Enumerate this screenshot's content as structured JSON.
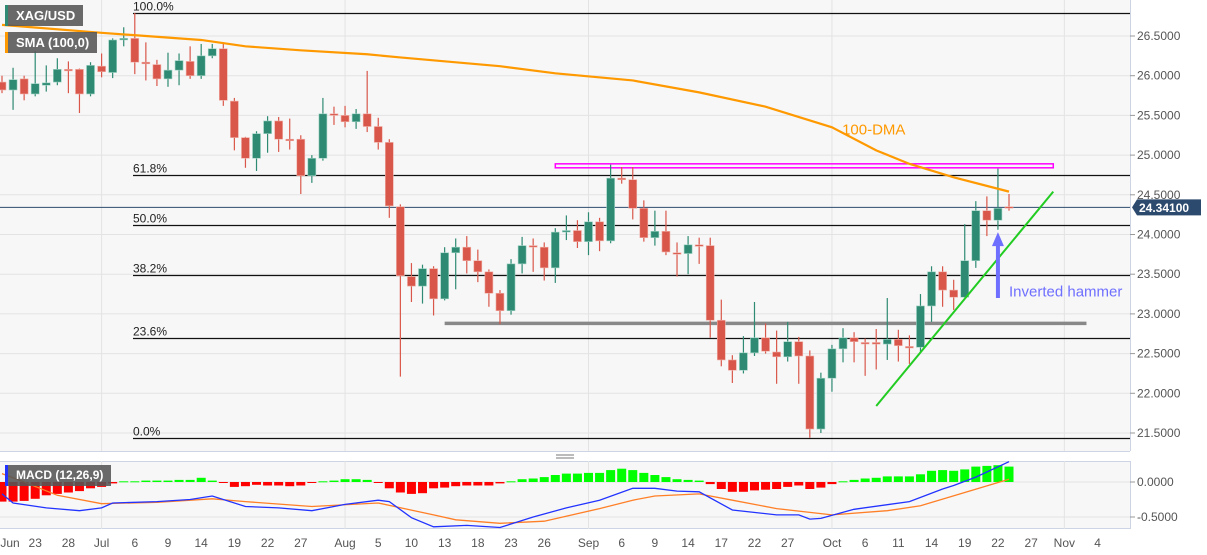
{
  "symbol": "XAG/USD",
  "legend": {
    "price": {
      "label": "XAG/USD",
      "color": "#2e8a72"
    },
    "sma": {
      "label": "SMA (100,0)",
      "color": "#ff9900"
    },
    "macd": {
      "label": "MACD (12,26,9)",
      "color": "#2233ff"
    }
  },
  "colors": {
    "up": "#2e8a72",
    "down": "#d9574a",
    "sma": "#ff9900",
    "macd": "#2233ff",
    "signal": "#ff7f27",
    "hist_up": "#00ff00",
    "hist_down": "#ff0000",
    "last_price": "#2c4a6e"
  },
  "last_price": "24.34100",
  "price_axis": {
    "ticks": [
      "26.5000",
      "26.0000",
      "25.5000",
      "25.0000",
      "24.5000",
      "24.0000",
      "23.5000",
      "23.0000",
      "22.5000",
      "22.0000",
      "21.5000"
    ]
  },
  "macd_axis": {
    "ticks": [
      "0.0000",
      "-0.5000"
    ]
  },
  "x_axis": {
    "ticks": [
      {
        "label": "Jun",
        "date": "Jun 18"
      },
      {
        "label": "23",
        "date": "Jun 23"
      },
      {
        "label": "28",
        "date": "Jun 28"
      },
      {
        "label": "Jul",
        "date": "Jul 1"
      },
      {
        "label": "6",
        "date": "Jul 6"
      },
      {
        "label": "9",
        "date": "Jul 9"
      },
      {
        "label": "14",
        "date": "Jul 14"
      },
      {
        "label": "19",
        "date": "Jul 19"
      },
      {
        "label": "22",
        "date": "Jul 22"
      },
      {
        "label": "27",
        "date": "Jul 27"
      },
      {
        "label": "Aug",
        "date": "Aug 2"
      },
      {
        "label": "5",
        "date": "Aug 5"
      },
      {
        "label": "10",
        "date": "Aug 10"
      },
      {
        "label": "13",
        "date": "Aug 13"
      },
      {
        "label": "18",
        "date": "Aug 18"
      },
      {
        "label": "23",
        "date": "Aug 23"
      },
      {
        "label": "26",
        "date": "Aug 26"
      },
      {
        "label": "Sep",
        "date": "Sep 1"
      },
      {
        "label": "6",
        "date": "Sep 6"
      },
      {
        "label": "9",
        "date": "Sep 9"
      },
      {
        "label": "14",
        "date": "Sep 14"
      },
      {
        "label": "17",
        "date": "Sep 17"
      },
      {
        "label": "22",
        "date": "Sep 22"
      },
      {
        "label": "27",
        "date": "Sep 27"
      },
      {
        "label": "Oct",
        "date": "Oct 1"
      },
      {
        "label": "6",
        "date": "Oct 6"
      },
      {
        "label": "11",
        "date": "Oct 11"
      },
      {
        "label": "14",
        "date": "Oct 14"
      },
      {
        "label": "19",
        "date": "Oct 19"
      },
      {
        "label": "22",
        "date": "Oct 22"
      },
      {
        "label": "27",
        "date": "Oct 27"
      },
      {
        "label": "Nov",
        "date": "Nov 1"
      },
      {
        "label": "4",
        "date": "Nov 4"
      }
    ]
  },
  "fibonacci": {
    "high": 26.79,
    "low": 21.44,
    "levels": [
      {
        "label": "100.0%",
        "ratio": 1.0
      },
      {
        "label": "61.8%",
        "ratio": 0.618
      },
      {
        "label": "50.0%",
        "ratio": 0.5
      },
      {
        "label": "38.2%",
        "ratio": 0.382
      },
      {
        "label": "23.6%",
        "ratio": 0.236
      },
      {
        "label": "0.0%",
        "ratio": 0.0
      }
    ]
  },
  "annotations": {
    "sma_label": {
      "text": "100-DMA",
      "date": "Oct 5",
      "price": 25.32
    },
    "resistance_zone": {
      "from": "Aug 27",
      "to": "Oct 29",
      "top": 24.89,
      "bottom": 24.84,
      "color": "#ff00ff"
    },
    "support_line": {
      "from": "Aug 13",
      "to": "Nov 3",
      "price": 22.88,
      "color": "#888888"
    },
    "trendline": {
      "from": {
        "date": "Oct 7",
        "price": 21.84
      },
      "to": {
        "date": "Oct 29",
        "price": 24.54
      },
      "color": "#22cc22"
    },
    "arrow": {
      "date": "Oct 22",
      "from": 23.2,
      "to": 24.03,
      "color": "#6f6fff"
    },
    "arrow_label": {
      "text": "Inverted hammer",
      "price": 23.28,
      "color": "#6f6fff"
    }
  },
  "chart_data": {
    "type": "candlestick",
    "title": "XAG/USD",
    "columns": [
      "date",
      "open",
      "high",
      "low",
      "close"
    ],
    "candles": [
      [
        "Jun 18",
        25.92,
        26.0,
        25.78,
        25.82
      ],
      [
        "Jun 21",
        25.82,
        26.1,
        25.57,
        25.95
      ],
      [
        "Jun 22",
        25.96,
        26.0,
        25.69,
        25.77
      ],
      [
        "Jun 23",
        25.77,
        26.31,
        25.74,
        25.9
      ],
      [
        "Jun 24",
        25.88,
        26.13,
        25.8,
        25.91
      ],
      [
        "Jun 25",
        25.92,
        26.22,
        25.88,
        26.08
      ],
      [
        "Jun 28",
        26.08,
        26.18,
        25.78,
        26.07
      ],
      [
        "Jun 29",
        26.08,
        26.09,
        25.53,
        25.77
      ],
      [
        "Jun 30",
        25.77,
        26.17,
        25.74,
        26.13
      ],
      [
        "Jul 1",
        26.12,
        26.28,
        25.98,
        26.05
      ],
      [
        "Jul 2",
        26.04,
        26.47,
        25.97,
        26.45
      ],
      [
        "Jul 5",
        26.46,
        26.61,
        26.37,
        26.47
      ],
      [
        "Jul 6",
        26.47,
        26.79,
        26.02,
        26.17
      ],
      [
        "Jul 7",
        26.17,
        26.42,
        25.94,
        26.15
      ],
      [
        "Jul 8",
        26.14,
        26.2,
        25.87,
        25.96
      ],
      [
        "Jul 9",
        25.96,
        26.29,
        25.86,
        26.07
      ],
      [
        "Jul 12",
        26.07,
        26.28,
        25.88,
        26.19
      ],
      [
        "Jul 13",
        26.18,
        26.37,
        25.96,
        26.0
      ],
      [
        "Jul 14",
        26.0,
        26.4,
        25.96,
        26.25
      ],
      [
        "Jul 15",
        26.25,
        26.4,
        26.22,
        26.34
      ],
      [
        "Jul 16",
        26.34,
        26.42,
        25.62,
        25.69
      ],
      [
        "Jul 19",
        25.68,
        25.72,
        25.06,
        25.22
      ],
      [
        "Jul 20",
        25.22,
        25.23,
        24.84,
        24.96
      ],
      [
        "Jul 21",
        24.96,
        25.3,
        24.8,
        25.27
      ],
      [
        "Jul 22",
        25.27,
        25.49,
        25.03,
        25.43
      ],
      [
        "Jul 23",
        25.43,
        25.48,
        25.04,
        25.2
      ],
      [
        "Jul 26",
        25.2,
        25.46,
        25.07,
        25.19
      ],
      [
        "Jul 27",
        25.2,
        25.25,
        24.51,
        24.74
      ],
      [
        "Jul 28",
        24.74,
        25.0,
        24.65,
        24.96
      ],
      [
        "Jul 29",
        24.96,
        25.72,
        24.93,
        25.52
      ],
      [
        "Jul 30",
        25.52,
        25.61,
        25.38,
        25.5
      ],
      [
        "Aug 2",
        25.5,
        25.62,
        25.35,
        25.42
      ],
      [
        "Aug 3",
        25.42,
        25.58,
        25.33,
        25.52
      ],
      [
        "Aug 4",
        25.52,
        26.06,
        25.29,
        25.36
      ],
      [
        "Aug 5",
        25.36,
        25.47,
        25.07,
        25.16
      ],
      [
        "Aug 6",
        25.16,
        25.2,
        24.21,
        24.36
      ],
      [
        "Aug 9",
        24.35,
        24.38,
        22.21,
        23.48
      ],
      [
        "Aug 10",
        23.47,
        23.64,
        23.15,
        23.35
      ],
      [
        "Aug 11",
        23.35,
        23.62,
        23.13,
        23.57
      ],
      [
        "Aug 12",
        23.57,
        23.6,
        22.98,
        23.19
      ],
      [
        "Aug 13",
        23.19,
        23.84,
        23.17,
        23.77
      ],
      [
        "Aug 16",
        23.77,
        23.95,
        23.31,
        23.84
      ],
      [
        "Aug 17",
        23.84,
        23.98,
        23.51,
        23.67
      ],
      [
        "Aug 18",
        23.67,
        23.81,
        23.4,
        23.53
      ],
      [
        "Aug 19",
        23.53,
        23.56,
        23.09,
        23.26
      ],
      [
        "Aug 20",
        23.26,
        23.3,
        22.87,
        23.04
      ],
      [
        "Aug 23",
        23.04,
        23.69,
        22.99,
        23.63
      ],
      [
        "Aug 24",
        23.63,
        23.97,
        23.51,
        23.86
      ],
      [
        "Aug 25",
        23.86,
        23.95,
        23.53,
        23.85
      ],
      [
        "Aug 26",
        23.84,
        23.9,
        23.42,
        23.58
      ],
      [
        "Aug 27",
        23.58,
        24.08,
        23.39,
        24.03
      ],
      [
        "Aug 30",
        24.04,
        24.24,
        23.93,
        24.05
      ],
      [
        "Aug 31",
        24.05,
        24.18,
        23.83,
        23.91
      ],
      [
        "Sep 1",
        23.91,
        24.28,
        23.74,
        24.16
      ],
      [
        "Sep 2",
        24.16,
        24.21,
        23.79,
        23.92
      ],
      [
        "Sep 3",
        23.92,
        24.88,
        23.89,
        24.71
      ],
      [
        "Sep 6",
        24.71,
        24.85,
        24.64,
        24.69
      ],
      [
        "Sep 7",
        24.69,
        24.85,
        24.19,
        24.33
      ],
      [
        "Sep 8",
        24.33,
        24.43,
        23.91,
        23.96
      ],
      [
        "Sep 9",
        23.96,
        24.3,
        23.86,
        24.04
      ],
      [
        "Sep 10",
        24.04,
        24.3,
        23.74,
        23.78
      ],
      [
        "Sep 13",
        23.77,
        23.9,
        23.47,
        23.76
      ],
      [
        "Sep 14",
        23.76,
        23.98,
        23.5,
        23.87
      ],
      [
        "Sep 15",
        23.87,
        23.96,
        23.63,
        23.86
      ],
      [
        "Sep 16",
        23.86,
        23.96,
        22.7,
        22.92
      ],
      [
        "Sep 17",
        22.92,
        23.18,
        22.34,
        22.42
      ],
      [
        "Sep 20",
        22.42,
        22.48,
        22.13,
        22.29
      ],
      [
        "Sep 21",
        22.29,
        22.72,
        22.25,
        22.51
      ],
      [
        "Sep 22",
        22.51,
        23.15,
        22.47,
        22.7
      ],
      [
        "Sep 23",
        22.7,
        22.88,
        22.5,
        22.53
      ],
      [
        "Sep 24",
        22.52,
        22.79,
        22.12,
        22.46
      ],
      [
        "Sep 27",
        22.46,
        22.9,
        22.4,
        22.65
      ],
      [
        "Sep 28",
        22.65,
        22.71,
        22.12,
        22.47
      ],
      [
        "Sep 29",
        22.47,
        22.54,
        21.44,
        21.55
      ],
      [
        "Sep 30",
        21.55,
        22.26,
        21.5,
        22.19
      ],
      [
        "Oct 1",
        22.19,
        22.61,
        22.02,
        22.56
      ],
      [
        "Oct 4",
        22.56,
        22.82,
        22.39,
        22.7
      ],
      [
        "Oct 5",
        22.7,
        22.77,
        22.39,
        22.65
      ],
      [
        "Oct 6",
        22.64,
        22.69,
        22.22,
        22.63
      ],
      [
        "Oct 7",
        22.64,
        22.81,
        22.3,
        22.62
      ],
      [
        "Oct 8",
        22.62,
        23.2,
        22.42,
        22.68
      ],
      [
        "Oct 11",
        22.68,
        22.8,
        22.4,
        22.6
      ],
      [
        "Oct 12",
        22.59,
        22.73,
        22.37,
        22.58
      ],
      [
        "Oct 13",
        22.58,
        23.25,
        22.51,
        23.1
      ],
      [
        "Oct 14",
        23.1,
        23.6,
        22.9,
        23.53
      ],
      [
        "Oct 15",
        23.53,
        23.6,
        23.09,
        23.3
      ],
      [
        "Oct 18",
        23.3,
        23.43,
        23.05,
        23.21
      ],
      [
        "Oct 19",
        23.21,
        24.13,
        23.2,
        23.67
      ],
      [
        "Oct 20",
        23.67,
        24.42,
        23.58,
        24.3
      ],
      [
        "Oct 21",
        24.3,
        24.48,
        23.98,
        24.18
      ],
      [
        "Oct 22",
        24.18,
        24.83,
        24.06,
        24.33
      ],
      [
        "Oct 25",
        24.35,
        24.51,
        24.3,
        24.341
      ]
    ],
    "future_dates": [
      "Oct 26",
      "Oct 27",
      "Oct 28",
      "Oct 29",
      "Nov 1",
      "Nov 2",
      "Nov 3",
      "Nov 4"
    ],
    "sma_100": [
      [
        "Jun 18",
        26.64
      ],
      [
        "Jul 1",
        26.54
      ],
      [
        "Jul 14",
        26.45
      ],
      [
        "Jul 20",
        26.37
      ],
      [
        "Jul 27",
        26.32
      ],
      [
        "Aug 4",
        26.27
      ],
      [
        "Aug 9",
        26.23
      ],
      [
        "Aug 20",
        26.12
      ],
      [
        "Aug 27",
        26.03
      ],
      [
        "Sep 7",
        25.94
      ],
      [
        "Sep 15",
        25.79
      ],
      [
        "Sep 23",
        25.61
      ],
      [
        "Oct 1",
        25.35
      ],
      [
        "Oct 7",
        25.06
      ],
      [
        "Oct 12",
        24.89
      ],
      [
        "Oct 18",
        24.72
      ],
      [
        "Oct 25",
        24.54
      ]
    ],
    "ylim": [
      21.2,
      26.8
    ],
    "macd": {
      "ylim": [
        -0.66,
        0.29
      ],
      "histogram": [
        -0.28,
        -0.28,
        -0.27,
        -0.24,
        -0.19,
        -0.17,
        -0.15,
        -0.13,
        -0.09,
        -0.07,
        -0.02,
        0.01,
        0.01,
        0.02,
        0.02,
        0.02,
        0.03,
        0.03,
        0.06,
        0.02,
        -0.01,
        -0.07,
        -0.06,
        -0.04,
        -0.05,
        -0.05,
        -0.06,
        -0.05,
        -0.01,
        0.01,
        0.02,
        0.04,
        0.04,
        0.03,
        -0.01,
        -0.09,
        -0.15,
        -0.17,
        -0.16,
        -0.09,
        -0.08,
        -0.06,
        -0.05,
        -0.05,
        -0.05,
        -0.02,
        0.01,
        0.04,
        0.05,
        0.07,
        0.1,
        0.12,
        0.12,
        0.13,
        0.13,
        0.17,
        0.19,
        0.17,
        0.13,
        0.1,
        0.07,
        0.04,
        0.03,
        0.02,
        -0.03,
        -0.1,
        -0.14,
        -0.14,
        -0.12,
        -0.11,
        -0.1,
        -0.07,
        -0.05,
        -0.1,
        -0.08,
        -0.03,
        0.01,
        0.03,
        0.05,
        0.06,
        0.08,
        0.08,
        0.08,
        0.11,
        0.16,
        0.17,
        0.16,
        0.18,
        0.22,
        0.23,
        0.24,
        0.22
      ],
      "macd_line": [
        [
          "Jun 18",
          -0.17
        ],
        [
          "Jun 21",
          -0.3
        ],
        [
          "Jun 24",
          -0.37
        ],
        [
          "Jun 29",
          -0.41
        ],
        [
          "Jul 1",
          -0.37
        ],
        [
          "Jul 2",
          -0.3
        ],
        [
          "Jul 8",
          -0.28
        ],
        [
          "Jul 13",
          -0.25
        ],
        [
          "Jul 15",
          -0.2
        ],
        [
          "Jul 20",
          -0.35
        ],
        [
          "Jul 23",
          -0.37
        ],
        [
          "Jul 28",
          -0.41
        ],
        [
          "Aug 2",
          -0.32
        ],
        [
          "Aug 5",
          -0.26
        ],
        [
          "Aug 6",
          -0.28
        ],
        [
          "Aug 10",
          -0.51
        ],
        [
          "Aug 12",
          -0.64
        ],
        [
          "Aug 17",
          -0.62
        ],
        [
          "Aug 20",
          -0.65
        ],
        [
          "Aug 25",
          -0.5
        ],
        [
          "Aug 30",
          -0.37
        ],
        [
          "Sep 2",
          -0.26
        ],
        [
          "Sep 7",
          -0.09
        ],
        [
          "Sep 9",
          -0.09
        ],
        [
          "Sep 13",
          -0.13
        ],
        [
          "Sep 15",
          -0.14
        ],
        [
          "Sep 20",
          -0.4
        ],
        [
          "Sep 24",
          -0.47
        ],
        [
          "Sep 28",
          -0.47
        ],
        [
          "Sep 29",
          -0.53
        ],
        [
          "Sep 30",
          -0.52
        ],
        [
          "Oct 5",
          -0.39
        ],
        [
          "Oct 12",
          -0.28
        ],
        [
          "Oct 15",
          -0.1
        ],
        [
          "Oct 18",
          -0.05
        ],
        [
          "Oct 20",
          0.07
        ],
        [
          "Oct 25",
          0.29
        ]
      ],
      "signal_line": [
        [
          "Jun 18",
          0.12
        ],
        [
          "Jun 22",
          0.0
        ],
        [
          "Jun 25",
          -0.19
        ],
        [
          "Jul 1",
          -0.31
        ],
        [
          "Jul 8",
          -0.29
        ],
        [
          "Jul 15",
          -0.24
        ],
        [
          "Jul 20",
          -0.28
        ],
        [
          "Jul 28",
          -0.35
        ],
        [
          "Aug 5",
          -0.3
        ],
        [
          "Aug 12",
          -0.47
        ],
        [
          "Aug 16",
          -0.54
        ],
        [
          "Aug 20",
          -0.59
        ],
        [
          "Aug 26",
          -0.56
        ],
        [
          "Sep 2",
          -0.38
        ],
        [
          "Sep 7",
          -0.26
        ],
        [
          "Sep 9",
          -0.2
        ],
        [
          "Sep 15",
          -0.17
        ],
        [
          "Sep 20",
          -0.26
        ],
        [
          "Sep 24",
          -0.38
        ],
        [
          "Oct 1",
          -0.47
        ],
        [
          "Oct 8",
          -0.41
        ],
        [
          "Oct 13",
          -0.34
        ],
        [
          "Oct 19",
          -0.15
        ],
        [
          "Oct 25",
          0.04
        ]
      ]
    }
  }
}
